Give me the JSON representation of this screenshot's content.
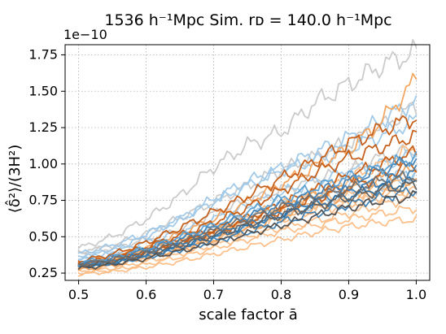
{
  "chart_data": {
    "type": "line",
    "title": "1536 h⁻¹Mpc Sim. rᴅ = 140.0 h⁻¹Mpc",
    "xlabel": "scale factor ā",
    "ylabel": "⟨δ̂²⟩/(3H²)",
    "offset_text": "1e−10",
    "xlim": [
      0.48,
      1.02
    ],
    "ylim": [
      0.2,
      1.82
    ],
    "x_ticks": [
      0.5,
      0.6,
      0.7,
      0.8,
      0.9,
      1.0
    ],
    "x_tick_labels": [
      "0.5",
      "0.6",
      "0.7",
      "0.8",
      "0.9",
      "1.0"
    ],
    "y_ticks": [
      0.25,
      0.5,
      0.75,
      1.0,
      1.25,
      1.5,
      1.75
    ],
    "y_tick_labels": [
      "0.25",
      "0.50",
      "0.75",
      "1.00",
      "1.25",
      "1.50",
      "1.75"
    ],
    "grid": true,
    "legend": "none",
    "x": [
      0.5,
      0.55,
      0.6,
      0.65,
      0.7,
      0.75,
      0.8,
      0.85,
      0.9,
      0.95,
      1.0
    ],
    "series": [
      {
        "color": "#c8c8c8",
        "values": [
          0.42,
          0.5,
          0.62,
          0.78,
          0.98,
          1.13,
          1.22,
          1.42,
          1.55,
          1.68,
          1.77
        ]
      },
      {
        "color": "#c8c8c8",
        "values": [
          0.38,
          0.44,
          0.52,
          0.63,
          0.74,
          0.85,
          0.96,
          1.05,
          1.15,
          1.26,
          1.4
        ]
      },
      {
        "color": "#c8c8c8",
        "values": [
          0.4,
          0.42,
          0.48,
          0.55,
          0.66,
          0.75,
          0.82,
          0.9,
          0.95,
          1.05,
          1.1
        ]
      },
      {
        "color": "#9ec8e8",
        "values": [
          0.35,
          0.4,
          0.5,
          0.62,
          0.76,
          0.88,
          0.97,
          1.08,
          1.18,
          1.3,
          1.44
        ]
      },
      {
        "color": "#9ec8e8",
        "values": [
          0.38,
          0.44,
          0.52,
          0.62,
          0.74,
          0.85,
          0.96,
          1.02,
          1.1,
          1.2,
          1.3
        ]
      },
      {
        "color": "#9ec8e8",
        "values": [
          0.36,
          0.4,
          0.46,
          0.53,
          0.62,
          0.71,
          0.8,
          0.88,
          0.95,
          1.0,
          1.07
        ]
      },
      {
        "color": "#9ec8e8",
        "values": [
          0.33,
          0.37,
          0.42,
          0.48,
          0.56,
          0.64,
          0.72,
          0.78,
          0.84,
          0.9,
          0.95
        ]
      },
      {
        "color": "#9ec8e8",
        "values": [
          0.34,
          0.36,
          0.41,
          0.46,
          0.53,
          0.59,
          0.66,
          0.72,
          0.8,
          0.86,
          0.91
        ]
      },
      {
        "color": "#f2a25a",
        "values": [
          0.3,
          0.35,
          0.42,
          0.52,
          0.62,
          0.74,
          0.86,
          0.98,
          1.1,
          1.3,
          1.58
        ]
      },
      {
        "color": "#fbbd86",
        "values": [
          0.32,
          0.36,
          0.41,
          0.48,
          0.56,
          0.64,
          0.72,
          0.8,
          0.9,
          1.0,
          1.12
        ]
      },
      {
        "color": "#fbbd86",
        "values": [
          0.3,
          0.33,
          0.38,
          0.45,
          0.52,
          0.6,
          0.67,
          0.73,
          0.78,
          0.84,
          0.9
        ]
      },
      {
        "color": "#fbbd86",
        "values": [
          0.28,
          0.31,
          0.36,
          0.42,
          0.48,
          0.55,
          0.62,
          0.68,
          0.72,
          0.78,
          0.82
        ]
      },
      {
        "color": "#fbbd86",
        "values": [
          0.26,
          0.28,
          0.33,
          0.38,
          0.44,
          0.5,
          0.56,
          0.61,
          0.66,
          0.72,
          0.78
        ]
      },
      {
        "color": "#fbbd86",
        "values": [
          0.25,
          0.27,
          0.31,
          0.36,
          0.42,
          0.48,
          0.54,
          0.58,
          0.62,
          0.66,
          0.7
        ]
      },
      {
        "color": "#fbbd86",
        "values": [
          0.24,
          0.26,
          0.29,
          0.33,
          0.38,
          0.43,
          0.48,
          0.53,
          0.57,
          0.6,
          0.62
        ]
      },
      {
        "color": "#f2a25a",
        "values": [
          0.27,
          0.3,
          0.35,
          0.41,
          0.48,
          0.55,
          0.63,
          0.7,
          0.76,
          0.81,
          0.86
        ]
      },
      {
        "color": "#f2a25a",
        "values": [
          0.29,
          0.33,
          0.38,
          0.45,
          0.53,
          0.61,
          0.7,
          0.78,
          0.85,
          0.9,
          0.96
        ]
      },
      {
        "color": "#c45a12",
        "values": [
          0.33,
          0.38,
          0.46,
          0.56,
          0.67,
          0.78,
          0.9,
          1.02,
          1.14,
          1.24,
          1.32
        ]
      },
      {
        "color": "#c45a12",
        "values": [
          0.31,
          0.36,
          0.43,
          0.51,
          0.6,
          0.7,
          0.82,
          0.94,
          1.04,
          1.12,
          1.2
        ]
      },
      {
        "color": "#c45a12",
        "values": [
          0.3,
          0.34,
          0.4,
          0.47,
          0.55,
          0.63,
          0.72,
          0.82,
          0.92,
          1.0,
          1.08
        ]
      },
      {
        "color": "#c45a12",
        "values": [
          0.32,
          0.35,
          0.4,
          0.46,
          0.53,
          0.6,
          0.68,
          0.76,
          0.84,
          0.92,
          1.0
        ]
      },
      {
        "color": "#3d7fb3",
        "values": [
          0.31,
          0.35,
          0.41,
          0.48,
          0.56,
          0.64,
          0.72,
          0.8,
          0.88,
          0.96,
          1.04
        ]
      },
      {
        "color": "#3d7fb3",
        "values": [
          0.3,
          0.33,
          0.38,
          0.44,
          0.51,
          0.58,
          0.66,
          0.74,
          0.82,
          0.88,
          0.95
        ]
      },
      {
        "color": "#2a6b9e",
        "values": [
          0.29,
          0.32,
          0.37,
          0.43,
          0.5,
          0.57,
          0.65,
          0.72,
          0.78,
          0.84,
          0.88
        ]
      },
      {
        "color": "#3d7fb3",
        "values": [
          0.3,
          0.32,
          0.36,
          0.41,
          0.47,
          0.53,
          0.6,
          0.66,
          0.72,
          0.77,
          0.82
        ]
      },
      {
        "color": "#5a9fd0",
        "values": [
          0.32,
          0.36,
          0.42,
          0.5,
          0.58,
          0.67,
          0.76,
          0.84,
          0.91,
          0.98,
          1.05
        ]
      },
      {
        "color": "#4d4d4d",
        "values": [
          0.28,
          0.31,
          0.35,
          0.4,
          0.46,
          0.52,
          0.58,
          0.64,
          0.7,
          0.75,
          0.78
        ]
      },
      {
        "color": "#606060",
        "values": [
          0.3,
          0.33,
          0.38,
          0.44,
          0.51,
          0.58,
          0.65,
          0.71,
          0.77,
          0.82,
          0.86
        ]
      },
      {
        "color": "#707070",
        "values": [
          0.31,
          0.34,
          0.39,
          0.46,
          0.54,
          0.62,
          0.7,
          0.77,
          0.83,
          0.88,
          0.92
        ]
      }
    ]
  }
}
